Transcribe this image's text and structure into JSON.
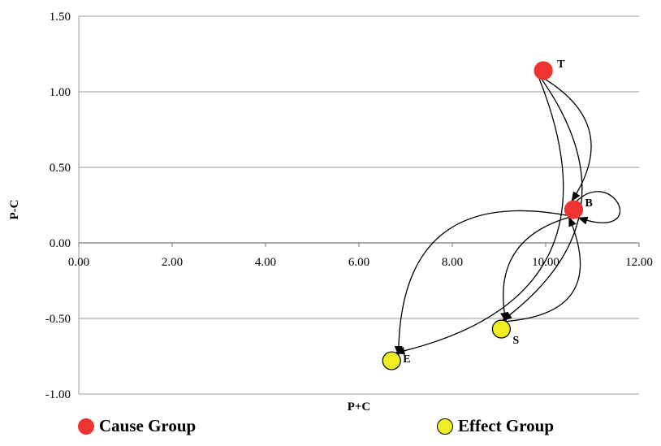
{
  "chart_data": {
    "type": "scatter",
    "xlabel": "P+C",
    "ylabel": "P-C",
    "xlim": [
      0,
      12
    ],
    "ylim": [
      -1.0,
      1.5
    ],
    "x_ticks": [
      "0.00",
      "2.00",
      "4.00",
      "6.00",
      "8.00",
      "10.00",
      "12.00"
    ],
    "y_ticks": [
      "1.50",
      "1.00",
      "0.50",
      "0.00",
      "-0.50",
      "-1.00"
    ],
    "grid": "horizontal",
    "points": [
      {
        "label": "T",
        "x": 9.95,
        "y": 1.14,
        "group": "cause"
      },
      {
        "label": "B",
        "x": 10.6,
        "y": 0.22,
        "group": "cause"
      },
      {
        "label": "S",
        "x": 9.05,
        "y": -0.57,
        "group": "effect"
      },
      {
        "label": "E",
        "x": 6.7,
        "y": -0.78,
        "group": "effect"
      }
    ],
    "edges": [
      {
        "from": "T",
        "to": "B"
      },
      {
        "from": "T",
        "to": "S"
      },
      {
        "from": "T",
        "to": "E"
      },
      {
        "from": "B",
        "to": "B"
      },
      {
        "from": "B",
        "to": "S"
      },
      {
        "from": "S",
        "to": "B"
      },
      {
        "from": "B",
        "to": "E"
      }
    ],
    "colors": {
      "cause": "#ee3333",
      "effect": "#eeee22"
    }
  },
  "legend": {
    "cause_label": "Cause Group",
    "effect_label": "Effect Group"
  }
}
